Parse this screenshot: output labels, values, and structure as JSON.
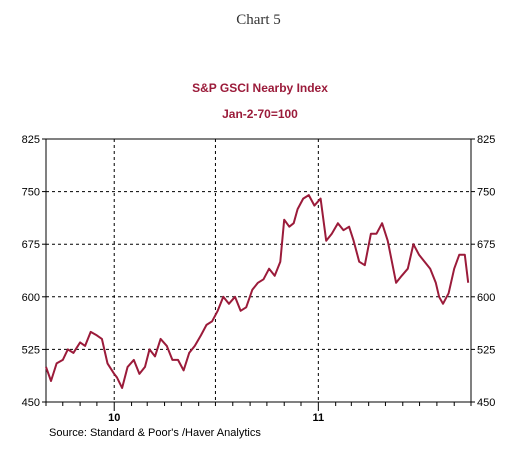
{
  "caption": "Chart 5",
  "source_note": "Source:  Standard & Poor's /Haver Analytics",
  "colors": {
    "series": "#9b1b3a",
    "title": "#9b1b3a",
    "grid": "#000000"
  },
  "chart_data": {
    "type": "line",
    "title": "S&P GSCI Nearby Index",
    "subtitle": "Jan-2-70=100",
    "xlabel": "",
    "ylabel": "",
    "ylim": [
      450,
      825
    ],
    "yticks": [
      450,
      525,
      600,
      675,
      750,
      825
    ],
    "ytick_labels": [
      "450",
      "525",
      "600",
      "675",
      "750",
      "825"
    ],
    "x_range": [
      "2009-09",
      "2011-10"
    ],
    "year_labels": [
      {
        "x": "2010-01",
        "label": "10"
      },
      {
        "x": "2011-01",
        "label": "11"
      }
    ],
    "vertical_gridlines": [
      "2010-01",
      "2010-07",
      "2011-01"
    ],
    "tick_interval": "month",
    "grid": true,
    "legend": "none",
    "series": [
      {
        "x": [
          "2009-09-01",
          "2009-09-10",
          "2009-09-20",
          "2009-10-01",
          "2009-10-10",
          "2009-10-20",
          "2009-11-01",
          "2009-11-10",
          "2009-11-20",
          "2009-12-01",
          "2009-12-10",
          "2009-12-20",
          "2010-01-01",
          "2010-01-06",
          "2010-01-15",
          "2010-01-25",
          "2010-02-05",
          "2010-02-15",
          "2010-02-25",
          "2010-03-05",
          "2010-03-15",
          "2010-03-25",
          "2010-04-05",
          "2010-04-15",
          "2010-04-25",
          "2010-05-05",
          "2010-05-15",
          "2010-05-25",
          "2010-06-05",
          "2010-06-15",
          "2010-06-25",
          "2010-07-05",
          "2010-07-15",
          "2010-07-25",
          "2010-08-05",
          "2010-08-15",
          "2010-08-25",
          "2010-09-05",
          "2010-09-15",
          "2010-09-25",
          "2010-10-05",
          "2010-10-15",
          "2010-10-25",
          "2010-11-01",
          "2010-11-10",
          "2010-11-18",
          "2010-11-25",
          "2010-12-05",
          "2010-12-15",
          "2010-12-25",
          "2011-01-05",
          "2011-01-15",
          "2011-01-25",
          "2011-02-05",
          "2011-02-15",
          "2011-02-25",
          "2011-03-05",
          "2011-03-15",
          "2011-03-25",
          "2011-04-05",
          "2011-04-15",
          "2011-04-25",
          "2011-05-05",
          "2011-05-10",
          "2011-05-20",
          "2011-05-30",
          "2011-06-10",
          "2011-06-20",
          "2011-06-30",
          "2011-07-10",
          "2011-07-20",
          "2011-07-30",
          "2011-08-05",
          "2011-08-12",
          "2011-08-22",
          "2011-09-01",
          "2011-09-10",
          "2011-09-20",
          "2011-09-26"
        ],
        "values": [
          500,
          480,
          505,
          510,
          525,
          520,
          535,
          530,
          550,
          545,
          540,
          505,
          490,
          485,
          470,
          500,
          510,
          490,
          500,
          525,
          515,
          540,
          530,
          510,
          510,
          495,
          520,
          530,
          545,
          560,
          565,
          580,
          600,
          590,
          600,
          580,
          585,
          610,
          620,
          625,
          640,
          630,
          650,
          710,
          700,
          705,
          725,
          740,
          745,
          730,
          740,
          680,
          690,
          705,
          695,
          700,
          680,
          650,
          645,
          690,
          690,
          705,
          680,
          660,
          620,
          630,
          640,
          675,
          660,
          650,
          640,
          620,
          600,
          590,
          605,
          640,
          660,
          660,
          620
        ]
      }
    ]
  }
}
